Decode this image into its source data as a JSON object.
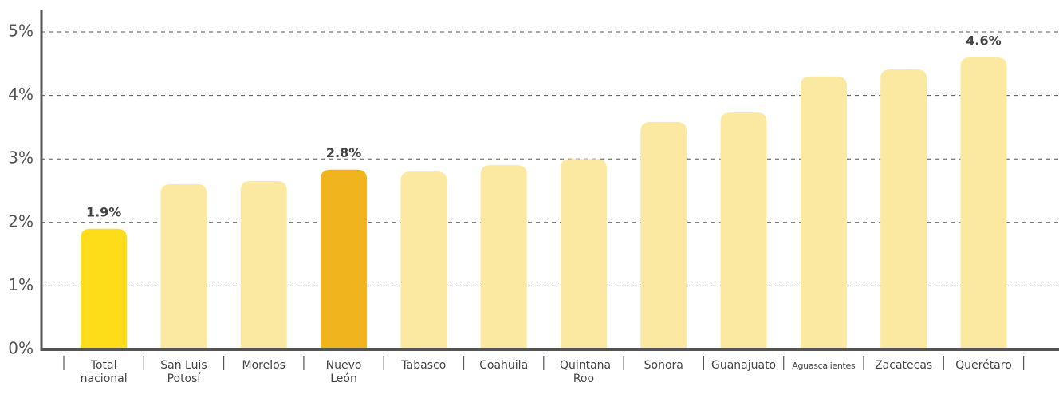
{
  "chart_data": {
    "type": "bar",
    "categories": [
      "Total nacional",
      "San Luis Potosí",
      "Morelos",
      "Nuevo León",
      "Tabasco",
      "Coahuila",
      "Quintana Roo",
      "Sonora",
      "Guanajuato",
      "Aguascalientes",
      "Zacatecas",
      "Querétaro"
    ],
    "values": [
      1.9,
      2.6,
      2.65,
      2.83,
      2.8,
      2.9,
      3.0,
      3.58,
      3.73,
      4.3,
      4.41,
      4.6
    ],
    "value_labels": [
      "1.9%",
      null,
      null,
      "2.8%",
      null,
      null,
      null,
      null,
      null,
      null,
      null,
      "4.6%"
    ],
    "colors": [
      "#fddc1a",
      "#fbe9a1",
      "#fbe9a1",
      "#f0b41f",
      "#fbe9a1",
      "#fbe9a1",
      "#fbe9a1",
      "#fbe9a1",
      "#fbe9a1",
      "#fbe9a1",
      "#fbe9a1",
      "#fbe9a1"
    ],
    "ylim": [
      0,
      5
    ],
    "yticks": [
      {
        "value": 0,
        "label": "0%"
      },
      {
        "value": 1,
        "label": "1%"
      },
      {
        "value": 2,
        "label": "2%"
      },
      {
        "value": 3,
        "label": "3%"
      },
      {
        "value": 4,
        "label": "4%"
      },
      {
        "value": 5,
        "label": "5%"
      }
    ],
    "grid": true
  }
}
